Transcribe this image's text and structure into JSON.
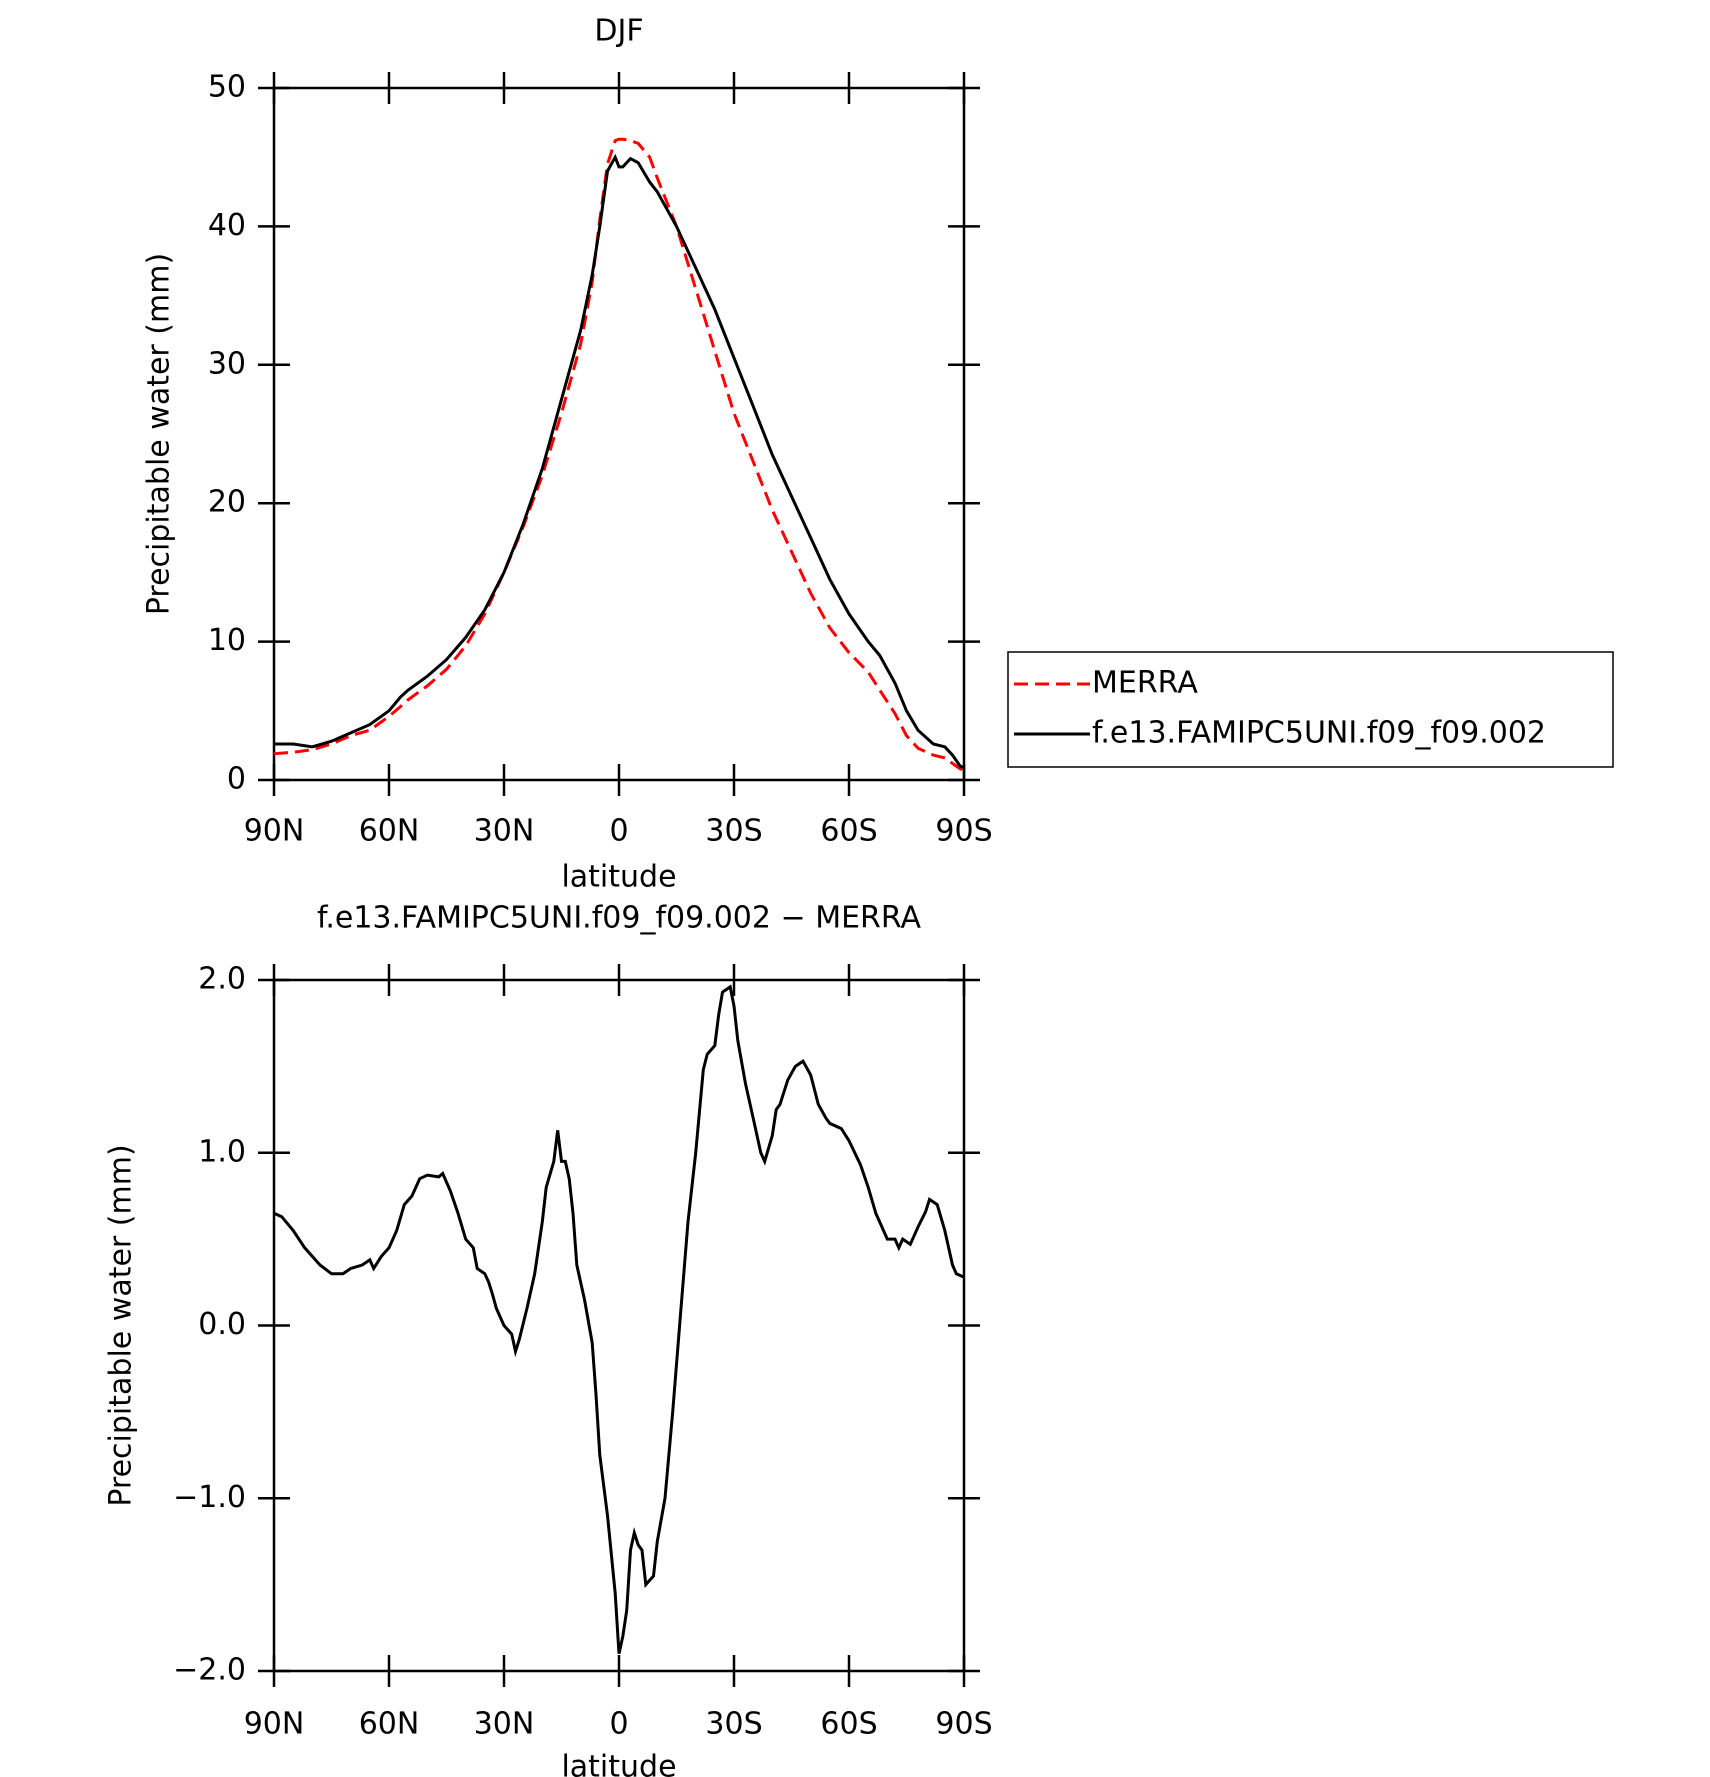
{
  "chart_data": [
    {
      "type": "line",
      "title": "DJF",
      "xlabel": "latitude",
      "ylabel": "Precipitable water (mm)",
      "x": [
        90,
        85,
        80,
        75,
        70,
        65,
        60,
        57,
        55,
        50,
        45,
        40,
        35,
        30,
        25,
        20,
        15,
        10,
        7,
        5,
        3,
        1,
        0,
        -1,
        -3,
        -5,
        -8,
        -10,
        -15,
        -20,
        -25,
        -30,
        -35,
        -40,
        -45,
        -50,
        -55,
        -60,
        -65,
        -68,
        -72,
        -75,
        -78,
        -82,
        -85,
        -87,
        -89,
        -90
      ],
      "xlim": [
        90,
        -90
      ],
      "xticks": [
        {
          "value": 90,
          "label": "90N"
        },
        {
          "value": 60,
          "label": "60N"
        },
        {
          "value": 30,
          "label": "30N"
        },
        0,
        {
          "value": -30,
          "label": "30S"
        },
        {
          "value": -60,
          "label": "60S"
        },
        {
          "value": -90,
          "label": "90S"
        }
      ],
      "ylim": [
        0,
        50
      ],
      "yticks": [
        0,
        10,
        20,
        30,
        40,
        50
      ],
      "legend": "right",
      "series": [
        {
          "name": "MERRA",
          "color": "#ff0000",
          "style": "dashed",
          "values": [
            1.9,
            2.0,
            2.2,
            2.6,
            3.2,
            3.6,
            4.6,
            5.3,
            5.8,
            6.8,
            8.0,
            9.7,
            12.0,
            15.0,
            18.3,
            22.0,
            26.5,
            31.5,
            36.0,
            40.5,
            44.5,
            46.2,
            46.3,
            46.3,
            46.2,
            46.0,
            45.0,
            43.5,
            40.0,
            35.5,
            31.0,
            26.5,
            23.0,
            19.5,
            16.5,
            13.5,
            11.0,
            9.2,
            7.8,
            6.5,
            4.8,
            3.2,
            2.3,
            1.8,
            1.6,
            1.2,
            0.8,
            0.7
          ]
        },
        {
          "name": "f.e13.FAMIPC5UNI.f09_f09.002",
          "color": "#000000",
          "style": "solid",
          "values": [
            2.6,
            2.6,
            2.4,
            2.8,
            3.4,
            4.0,
            5.0,
            6.0,
            6.5,
            7.5,
            8.7,
            10.3,
            12.3,
            15.0,
            18.5,
            22.5,
            27.5,
            32.5,
            36.5,
            40.0,
            44.0,
            45.0,
            44.3,
            44.3,
            44.9,
            44.6,
            43.2,
            42.5,
            40.0,
            37.0,
            34.0,
            30.5,
            27.0,
            23.5,
            20.5,
            17.5,
            14.5,
            12.0,
            10.0,
            9.0,
            7.0,
            5.0,
            3.6,
            2.6,
            2.4,
            1.8,
            1.0,
            0.9
          ]
        }
      ]
    },
    {
      "type": "line",
      "title": "f.e13.FAMIPC5UNI.f09_f09.002 − MERRA",
      "xlabel": "latitude",
      "ylabel": "Precipitable water (mm)",
      "x": [
        90,
        88,
        85,
        82,
        78,
        75,
        72,
        70,
        67,
        65,
        64,
        62,
        60,
        58,
        56,
        54,
        52,
        50,
        47,
        46,
        44,
        42,
        40,
        38,
        37,
        35,
        34,
        33,
        32,
        30,
        28,
        27,
        26,
        24,
        22,
        20,
        19,
        17,
        16,
        15,
        14,
        13,
        12,
        11,
        9,
        7,
        6,
        5,
        3,
        1,
        0,
        -1,
        -2,
        -3,
        -4,
        -5,
        -6,
        -7,
        -9,
        -10,
        -12,
        -14,
        -16,
        -18,
        -20,
        -22,
        -23,
        -25,
        -26,
        -27,
        -29,
        -30,
        -31,
        -33,
        -35,
        -37,
        -38,
        -40,
        -41,
        -42,
        -44,
        -46,
        -48,
        -50,
        -52,
        -54,
        -55,
        -58,
        -60,
        -63,
        -65,
        -67,
        -69,
        -70,
        -72,
        -73,
        -74,
        -76,
        -78,
        -80,
        -81,
        -83,
        -85,
        -87,
        -88,
        -90
      ],
      "xlim": [
        90,
        -90
      ],
      "xticks": [
        {
          "value": 90,
          "label": "90N"
        },
        {
          "value": 60,
          "label": "60N"
        },
        {
          "value": 30,
          "label": "30N"
        },
        0,
        {
          "value": -30,
          "label": "30S"
        },
        {
          "value": -60,
          "label": "60S"
        },
        {
          "value": -90,
          "label": "90S"
        }
      ],
      "ylim": [
        -2,
        2
      ],
      "yticks": [
        {
          "value": -2,
          "label": "−2.0"
        },
        {
          "value": -1,
          "label": "−1.0"
        },
        {
          "value": 0,
          "label": "0.0"
        },
        {
          "value": 1,
          "label": "1.0"
        },
        {
          "value": 2,
          "label": "2.0"
        }
      ],
      "series": [
        {
          "color": "#000000",
          "style": "solid",
          "values": [
            0.65,
            0.63,
            0.55,
            0.45,
            0.35,
            0.3,
            0.3,
            0.33,
            0.35,
            0.38,
            0.33,
            0.4,
            0.45,
            0.55,
            0.7,
            0.75,
            0.85,
            0.87,
            0.86,
            0.88,
            0.78,
            0.65,
            0.5,
            0.45,
            0.33,
            0.3,
            0.25,
            0.18,
            0.1,
            0.0,
            -0.05,
            -0.15,
            -0.08,
            0.1,
            0.3,
            0.6,
            0.8,
            0.95,
            1.13,
            0.95,
            0.95,
            0.85,
            0.65,
            0.35,
            0.15,
            -0.1,
            -0.4,
            -0.75,
            -1.1,
            -1.55,
            -1.9,
            -1.8,
            -1.65,
            -1.3,
            -1.2,
            -1.27,
            -1.3,
            -1.5,
            -1.45,
            -1.25,
            -1.0,
            -0.5,
            0.05,
            0.6,
            1.0,
            1.48,
            1.57,
            1.62,
            1.8,
            1.93,
            1.96,
            1.85,
            1.65,
            1.4,
            1.2,
            1.0,
            0.95,
            1.1,
            1.25,
            1.28,
            1.42,
            1.5,
            1.53,
            1.45,
            1.28,
            1.2,
            1.17,
            1.14,
            1.07,
            0.93,
            0.8,
            0.65,
            0.55,
            0.5,
            0.5,
            0.45,
            0.5,
            0.47,
            0.57,
            0.66,
            0.73,
            0.7,
            0.55,
            0.35,
            0.3,
            0.28
          ]
        }
      ]
    }
  ]
}
